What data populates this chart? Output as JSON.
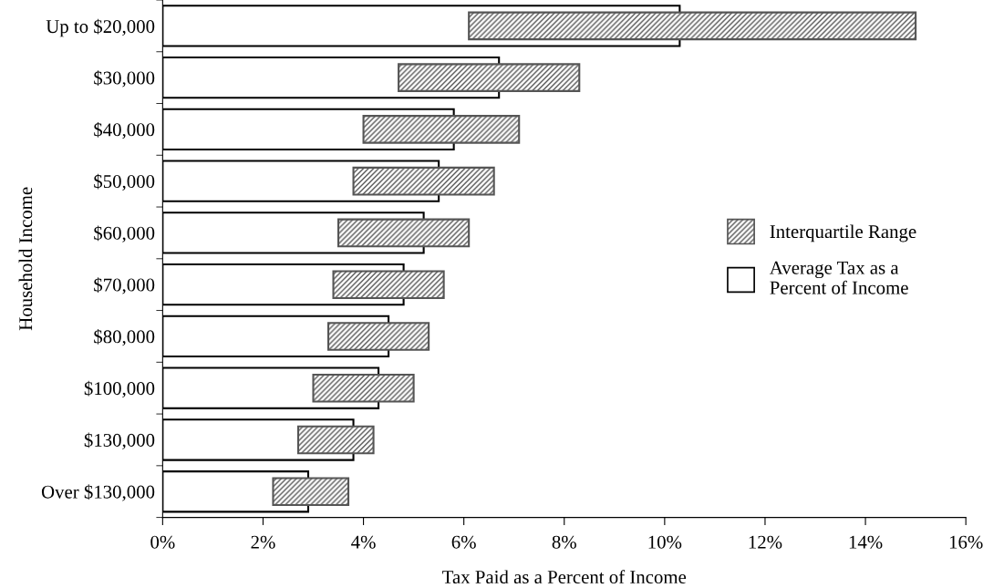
{
  "chart_data": {
    "type": "bar",
    "orientation": "horizontal",
    "xlabel": "Tax Paid as a Percent of Income",
    "ylabel": "Household Income",
    "categories": [
      "Up to $20,000",
      "$30,000",
      "$40,000",
      "$50,000",
      "$60,000",
      "$70,000",
      "$80,000",
      "$100,000",
      "$130,000",
      "Over $130,000"
    ],
    "series": [
      {
        "name": "Average Tax as a\nPercent of Income",
        "color": "#ffffff",
        "values": [
          10.3,
          6.7,
          5.8,
          5.5,
          5.2,
          4.8,
          4.5,
          4.3,
          3.8,
          2.9
        ]
      },
      {
        "name": "Interquartile Range",
        "color": "#555555",
        "base": [
          6.1,
          4.7,
          4.0,
          3.8,
          3.5,
          3.4,
          3.3,
          3.0,
          2.7,
          2.2
        ],
        "values": [
          8.9,
          3.6,
          3.1,
          2.8,
          2.6,
          2.2,
          2.0,
          2.0,
          1.5,
          1.5
        ]
      }
    ],
    "xlim": [
      0,
      16
    ],
    "xticks": [
      {
        "value": 0,
        "label": "0%"
      },
      {
        "value": 2,
        "label": "2%"
      },
      {
        "value": 4,
        "label": "4%"
      },
      {
        "value": 6,
        "label": "6%"
      },
      {
        "value": 8,
        "label": "8%"
      },
      {
        "value": 10,
        "label": "10%"
      },
      {
        "value": 12,
        "label": "12%"
      },
      {
        "value": 14,
        "label": "14%"
      },
      {
        "value": 16,
        "label": "16%"
      }
    ],
    "grid": false,
    "legend": "right"
  }
}
